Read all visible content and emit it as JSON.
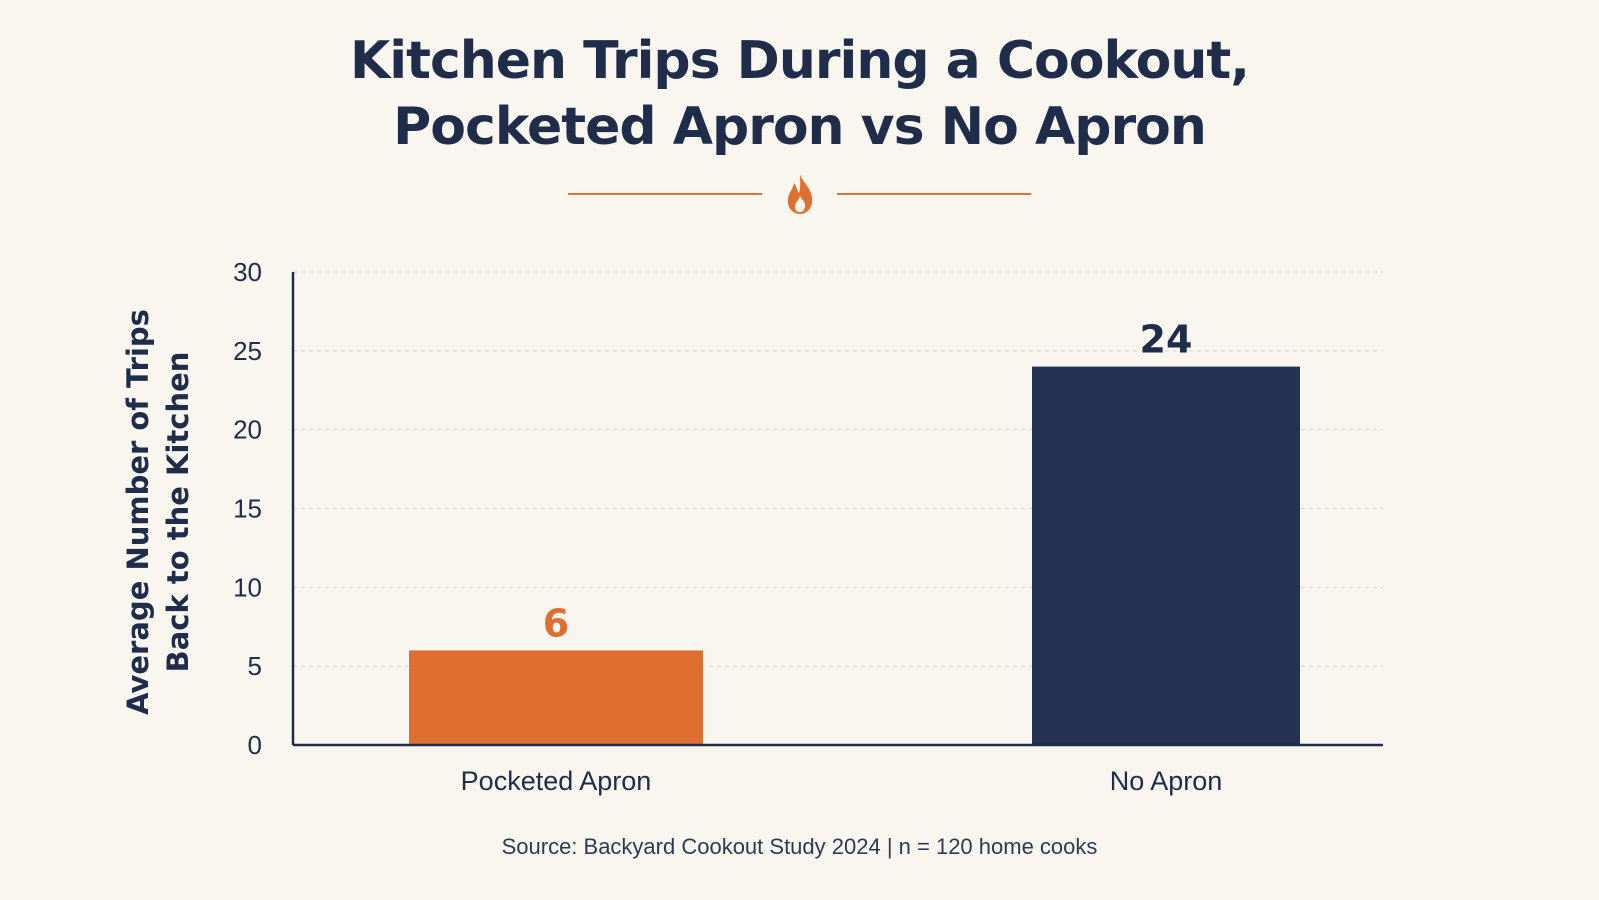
{
  "title_lines": [
    "Kitchen Trips During a Cookout,",
    "Pocketed Apron vs No Apron"
  ],
  "decoration": {
    "icon": "flame-icon",
    "accent_color": "#d9753a"
  },
  "chart_data": {
    "type": "bar",
    "categories": [
      "Pocketed Apron",
      "No Apron"
    ],
    "values": [
      6,
      24
    ],
    "data_labels": [
      "6",
      "24"
    ],
    "bar_colors": [
      "#df6f30",
      "#243352"
    ],
    "ylabel_lines": [
      "Average Number of Trips",
      "Back to the Kitchen"
    ],
    "xlabel": "",
    "ylim": [
      0,
      30
    ],
    "yticks": [
      0,
      5,
      10,
      15,
      20,
      25,
      30
    ],
    "grid": "horizontal-dashed"
  },
  "source_note": "Source: Backyard Cookout Study 2024  |  n = 120 home cooks"
}
